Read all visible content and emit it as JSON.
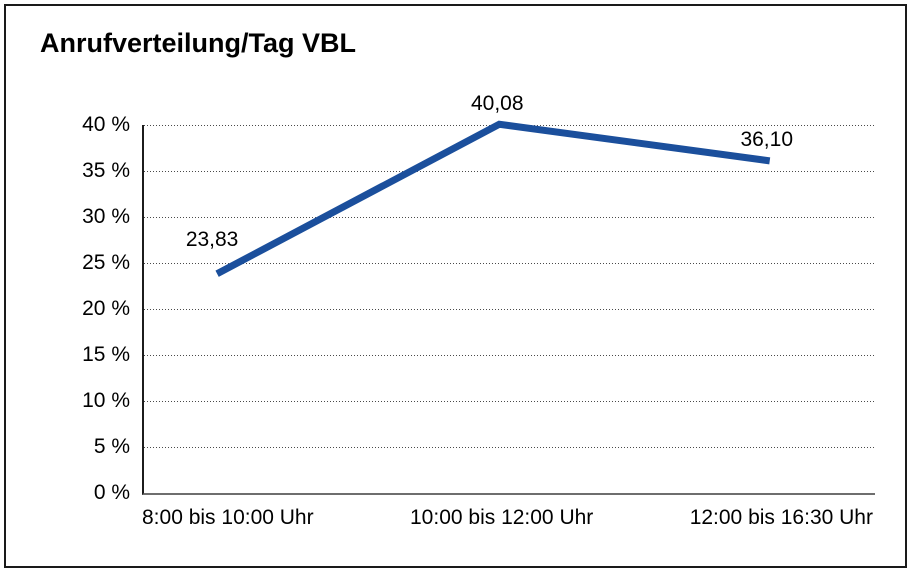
{
  "chart_data": {
    "type": "line",
    "title": "Anrufverteilung/Tag VBL",
    "categories": [
      "8:00 bis 10:00 Uhr",
      "10:00 bis 12:00 Uhr",
      "12:00 bis 16:30 Uhr"
    ],
    "series": [
      {
        "name": "Anrufverteilung/Tag VBL",
        "values": [
          23.83,
          40.08,
          36.1
        ],
        "point_labels": [
          "23,83",
          "40,08",
          "36,10"
        ],
        "color": "#1B4F9C"
      }
    ],
    "xlabel": "",
    "ylabel": "",
    "ylim": [
      0,
      40
    ],
    "ytick_step": 5,
    "ytick_labels": [
      "0 %",
      "5 %",
      "10 %",
      "15 %",
      "20 %",
      "25 %",
      "30 %",
      "35 %",
      "40 %"
    ],
    "grid": "horizontal-dotted",
    "legend": "none"
  },
  "colors": {
    "line": "#1B4F9C",
    "grid_dots": "#4A4A4A",
    "x_axis": "#6E6E6E",
    "y_axis": "#1C1C1C",
    "frame": "#1A1A1A",
    "text": "#000000",
    "background": "#FFFFFF"
  }
}
